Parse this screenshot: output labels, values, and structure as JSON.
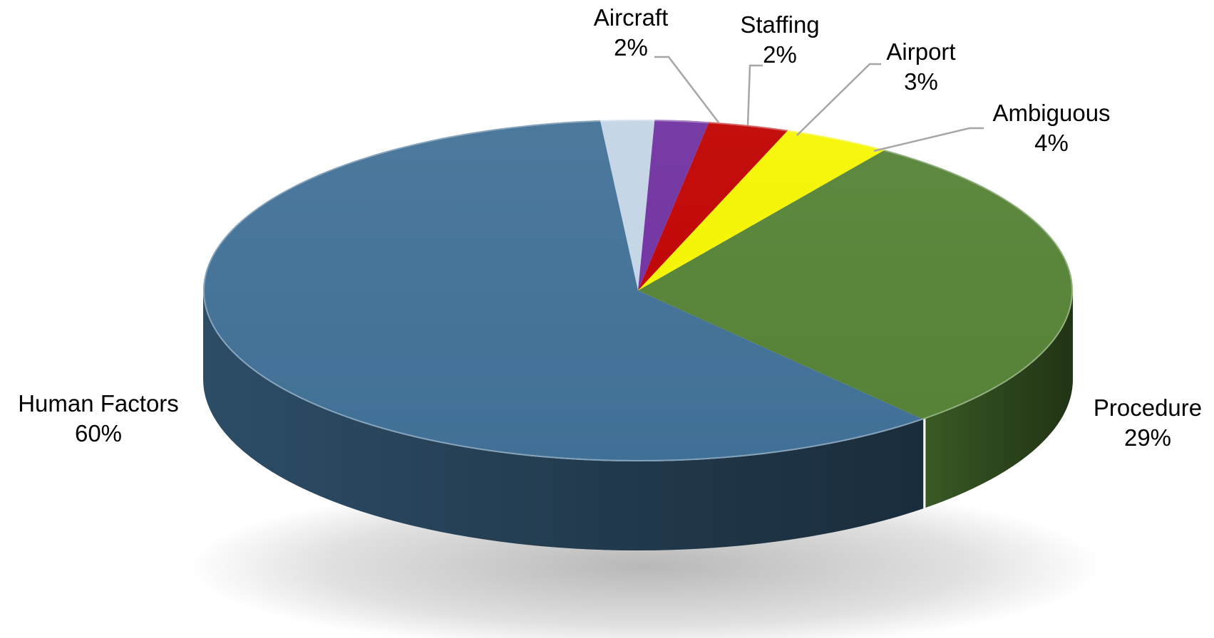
{
  "chart_data": {
    "type": "pie",
    "style": "3d",
    "title": "",
    "start_angle_deg": 95,
    "direction": "clockwise",
    "slices": [
      {
        "label": "Aircraft",
        "value": 2,
        "percent_label": "2%",
        "color": "#c3d4e6"
      },
      {
        "label": "Staffing",
        "value": 2,
        "percent_label": "2%",
        "color": "#7030a0"
      },
      {
        "label": "Airport",
        "value": 3,
        "percent_label": "3%",
        "color": "#c00000"
      },
      {
        "label": "Ambiguous",
        "value": 4,
        "percent_label": "4%",
        "color": "#f5f500"
      },
      {
        "label": "Procedure",
        "value": 29,
        "percent_label": "29%",
        "color": "#548235"
      },
      {
        "label": "Human Factors",
        "value": 60,
        "percent_label": "60%",
        "color": "#417096"
      }
    ],
    "leader_line_color": "#a6a6a6",
    "background_color": "#ffffff"
  }
}
